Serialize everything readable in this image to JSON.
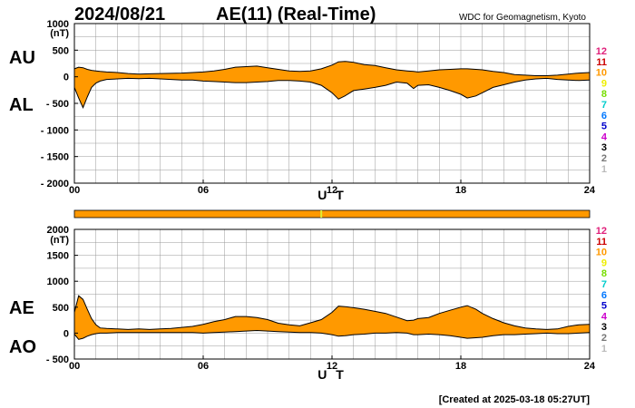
{
  "header": {
    "date": "2024/08/21",
    "title": "AE(11) (Real-Time)",
    "source": "WDC for Geomagnetism, Kyoto"
  },
  "footer": {
    "created": "[Created at 2025-03-18 05:27UT]"
  },
  "legend": {
    "items": [
      {
        "label": "12",
        "color": "#e0207a"
      },
      {
        "label": "11",
        "color": "#cc0000"
      },
      {
        "label": "10",
        "color": "#ff9900"
      },
      {
        "label": "9",
        "color": "#eeee00"
      },
      {
        "label": "8",
        "color": "#77dd00"
      },
      {
        "label": "7",
        "color": "#00cccc"
      },
      {
        "label": "6",
        "color": "#0077ff"
      },
      {
        "label": "5",
        "color": "#0000cc"
      },
      {
        "label": "4",
        "color": "#cc00cc"
      },
      {
        "label": "3",
        "color": "#000000"
      },
      {
        "label": "2",
        "color": "#777777"
      },
      {
        "label": "1",
        "color": "#bbbbbb"
      }
    ]
  },
  "colors": {
    "fill": "#ff9900",
    "line": "#000000",
    "grid": "#999999",
    "marker": "#ddee33"
  },
  "status_bar": {
    "marker_hour": 11.5
  },
  "chart_data": [
    {
      "type": "area",
      "name": "AU-AL",
      "upper_label": "AU",
      "lower_label": "AL",
      "unit": "(nT)",
      "xlabel": "U T",
      "xlim": [
        0,
        24
      ],
      "ylim": [
        -2000,
        1000
      ],
      "xticks": [
        0,
        6,
        12,
        18,
        24
      ],
      "xtick_labels": [
        "00",
        "06",
        "12",
        "18",
        "24"
      ],
      "yticks": [
        1000,
        500,
        0,
        -500,
        -1000,
        -1500,
        -2000
      ],
      "ytick_labels": [
        "1000",
        "500",
        "0",
        "- 500",
        "- 1000",
        "- 1500",
        "- 2000"
      ],
      "grid": true,
      "x": [
        0,
        0.2,
        0.4,
        0.6,
        0.8,
        1,
        1.2,
        1.5,
        2,
        2.5,
        3,
        3.5,
        4,
        4.5,
        5,
        5.5,
        6,
        6.5,
        7,
        7.5,
        8,
        8.5,
        9,
        9.5,
        10,
        10.5,
        11,
        11.5,
        12,
        12.3,
        12.6,
        13,
        13.5,
        14,
        14.5,
        15,
        15.5,
        15.8,
        16,
        16.5,
        17,
        17.5,
        18,
        18.3,
        18.7,
        19,
        19.5,
        20,
        20.5,
        21,
        21.5,
        22,
        22.5,
        23,
        23.5,
        24
      ],
      "series": [
        {
          "name": "AU",
          "values": [
            150,
            180,
            170,
            140,
            120,
            110,
            100,
            90,
            80,
            60,
            50,
            55,
            60,
            65,
            70,
            80,
            90,
            110,
            140,
            180,
            190,
            200,
            170,
            140,
            110,
            100,
            110,
            150,
            220,
            280,
            290,
            270,
            230,
            210,
            170,
            130,
            110,
            100,
            90,
            110,
            130,
            140,
            150,
            150,
            140,
            130,
            100,
            80,
            40,
            30,
            20,
            20,
            30,
            50,
            70,
            80
          ]
        },
        {
          "name": "AL",
          "values": [
            -200,
            -400,
            -580,
            -380,
            -200,
            -120,
            -80,
            -50,
            -40,
            -30,
            -35,
            -30,
            -40,
            -50,
            -60,
            -60,
            -80,
            -90,
            -100,
            -110,
            -110,
            -100,
            -90,
            -70,
            -70,
            -80,
            -100,
            -160,
            -300,
            -420,
            -360,
            -260,
            -230,
            -200,
            -160,
            -100,
            -120,
            -220,
            -160,
            -150,
            -200,
            -260,
            -330,
            -400,
            -360,
            -300,
            -200,
            -150,
            -100,
            -60,
            -40,
            -30,
            -50,
            -60,
            -70,
            -60
          ]
        }
      ]
    },
    {
      "type": "area",
      "name": "AE-AO",
      "upper_label": "AE",
      "lower_label": "AO",
      "unit": "(nT)",
      "xlabel": "U T",
      "xlim": [
        0,
        24
      ],
      "ylim": [
        -500,
        2000
      ],
      "xticks": [
        0,
        6,
        12,
        18,
        24
      ],
      "xtick_labels": [
        "00",
        "06",
        "12",
        "18",
        "24"
      ],
      "yticks": [
        2000,
        1500,
        1000,
        500,
        0,
        -500
      ],
      "ytick_labels": [
        "2000",
        "1500",
        "1000",
        "500",
        "0",
        "- 500"
      ],
      "grid": true,
      "x": [
        0,
        0.2,
        0.4,
        0.6,
        0.8,
        1,
        1.2,
        1.5,
        2,
        2.5,
        3,
        3.5,
        4,
        4.5,
        5,
        5.5,
        6,
        6.5,
        7,
        7.5,
        8,
        8.5,
        9,
        9.5,
        10,
        10.5,
        11,
        11.5,
        12,
        12.3,
        12.6,
        13,
        13.5,
        14,
        14.5,
        15,
        15.5,
        15.8,
        16,
        16.5,
        17,
        17.5,
        18,
        18.3,
        18.7,
        19,
        19.5,
        20,
        20.5,
        21,
        21.5,
        22,
        22.5,
        23,
        23.5,
        24
      ],
      "series": [
        {
          "name": "AE",
          "values": [
            400,
            720,
            650,
            460,
            280,
            160,
            100,
            90,
            80,
            70,
            80,
            70,
            80,
            90,
            110,
            130,
            170,
            220,
            260,
            320,
            320,
            300,
            260,
            190,
            160,
            140,
            200,
            260,
            400,
            520,
            510,
            490,
            460,
            420,
            380,
            310,
            240,
            250,
            280,
            300,
            380,
            440,
            500,
            530,
            460,
            380,
            280,
            200,
            140,
            100,
            80,
            70,
            80,
            130,
            160,
            170
          ]
        },
        {
          "name": "AO",
          "values": [
            -20,
            -120,
            -100,
            -60,
            -30,
            -10,
            0,
            0,
            10,
            10,
            10,
            10,
            10,
            10,
            10,
            10,
            0,
            10,
            20,
            30,
            40,
            50,
            40,
            30,
            20,
            10,
            10,
            0,
            -30,
            -60,
            -50,
            -30,
            -20,
            0,
            0,
            10,
            0,
            -30,
            -30,
            -20,
            -30,
            -50,
            -80,
            -100,
            -90,
            -80,
            -50,
            -30,
            -30,
            -20,
            -10,
            0,
            -10,
            -10,
            0,
            10
          ]
        }
      ]
    }
  ]
}
